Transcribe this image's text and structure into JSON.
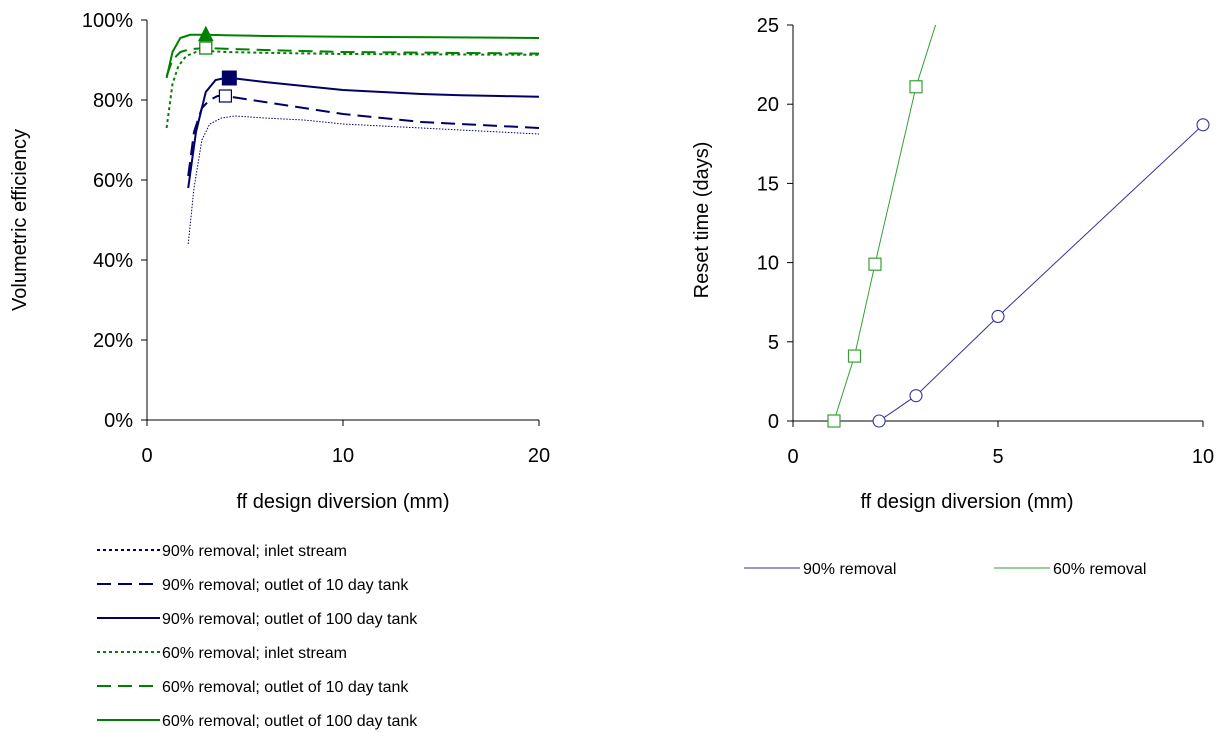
{
  "chart_data": [
    {
      "type": "line",
      "xlabel": "ff design diversion (mm)",
      "ylabel": "Volumetric efficiency",
      "xlim": [
        0,
        20
      ],
      "ylim": [
        0,
        100
      ],
      "xticks": [
        "0",
        "10",
        "20"
      ],
      "yticks": [
        "0%",
        "20%",
        "40%",
        "60%",
        "80%",
        "100%"
      ],
      "series": [
        {
          "name": "90% removal; inlet stream",
          "color": "#000066",
          "style": "dotted",
          "x": [
            2.1,
            2.4,
            2.8,
            3.2,
            3.8,
            4.5,
            6,
            8,
            10,
            12,
            14,
            16,
            18,
            20
          ],
          "y": [
            44,
            58,
            70,
            74,
            75.5,
            76,
            75.5,
            75,
            74,
            73.5,
            73,
            72.5,
            72,
            71.5
          ]
        },
        {
          "name": "90% removal; outlet of 10 day tank",
          "color": "#000066",
          "style": "dashed",
          "x": [
            2.1,
            2.4,
            2.8,
            3.2,
            3.6,
            4,
            6,
            8,
            10,
            12,
            14,
            16,
            18,
            20
          ],
          "y": [
            61,
            72,
            78,
            80,
            81,
            81,
            79.5,
            78,
            76.5,
            75.5,
            74.5,
            74,
            73.5,
            73
          ]
        },
        {
          "name": "90% removal; outlet of 100 day tank",
          "color": "#000066",
          "style": "solid",
          "x": [
            2.1,
            2.5,
            3,
            3.5,
            4,
            4.3,
            6,
            8,
            10,
            12,
            14,
            16,
            18,
            20
          ],
          "y": [
            58,
            72,
            82,
            85,
            85.5,
            85.5,
            84.5,
            83.5,
            82.5,
            82,
            81.5,
            81.2,
            81,
            80.8
          ]
        },
        {
          "name": "60% removal; inlet stream",
          "color": "#008000",
          "style": "dotted",
          "x": [
            1,
            1.3,
            1.6,
            2,
            2.5,
            3,
            4,
            6,
            10,
            15,
            20
          ],
          "y": [
            73,
            84,
            88.5,
            91,
            92,
            92.3,
            92,
            91.8,
            91.5,
            91.4,
            91.3
          ]
        },
        {
          "name": "60% removal; outlet of 10 day tank",
          "color": "#008000",
          "style": "dashed",
          "x": [
            1,
            1.3,
            1.7,
            2.2,
            3,
            4,
            6,
            10,
            15,
            20
          ],
          "y": [
            86,
            90,
            92,
            92.7,
            93,
            92.8,
            92.5,
            92,
            91.8,
            91.6
          ]
        },
        {
          "name": "60% removal; outlet of 100 day tank",
          "color": "#008000",
          "style": "solid",
          "x": [
            1,
            1.3,
            1.7,
            2.2,
            3,
            4,
            6,
            10,
            15,
            20
          ],
          "y": [
            85.5,
            92,
            95.5,
            96.3,
            96.3,
            96.2,
            96,
            95.8,
            95.7,
            95.5
          ]
        }
      ],
      "markers": [
        {
          "shape": "triangle-filled",
          "color": "#008000",
          "x": 3,
          "y": 96.3
        },
        {
          "shape": "square-open",
          "color": "#008000",
          "x": 3,
          "y": 93
        },
        {
          "shape": "square-filled",
          "color": "#000066",
          "x": 4.2,
          "y": 85.5
        },
        {
          "shape": "square-open",
          "color": "#000066",
          "x": 4,
          "y": 81
        }
      ],
      "legend_position": "below"
    },
    {
      "type": "line",
      "xlabel": "ff design diversion (mm)",
      "ylabel": "Reset time (days)",
      "xlim": [
        0,
        10
      ],
      "ylim": [
        0,
        25
      ],
      "xticks": [
        "0",
        "5",
        "10"
      ],
      "yticks": [
        "0",
        "5",
        "10",
        "15",
        "20",
        "25"
      ],
      "series": [
        {
          "name": "90% removal",
          "color": "#33339a",
          "marker": "circle-open",
          "x": [
            2.1,
            3,
            5,
            10
          ],
          "y": [
            0,
            1.6,
            6.6,
            18.7
          ]
        },
        {
          "name": "60% removal",
          "color": "#33a033",
          "marker": "square-open",
          "x": [
            1,
            1.5,
            2,
            3,
            3.6
          ],
          "y": [
            0,
            4.1,
            9.9,
            21.1,
            26
          ]
        }
      ],
      "legend_position": "below"
    }
  ]
}
